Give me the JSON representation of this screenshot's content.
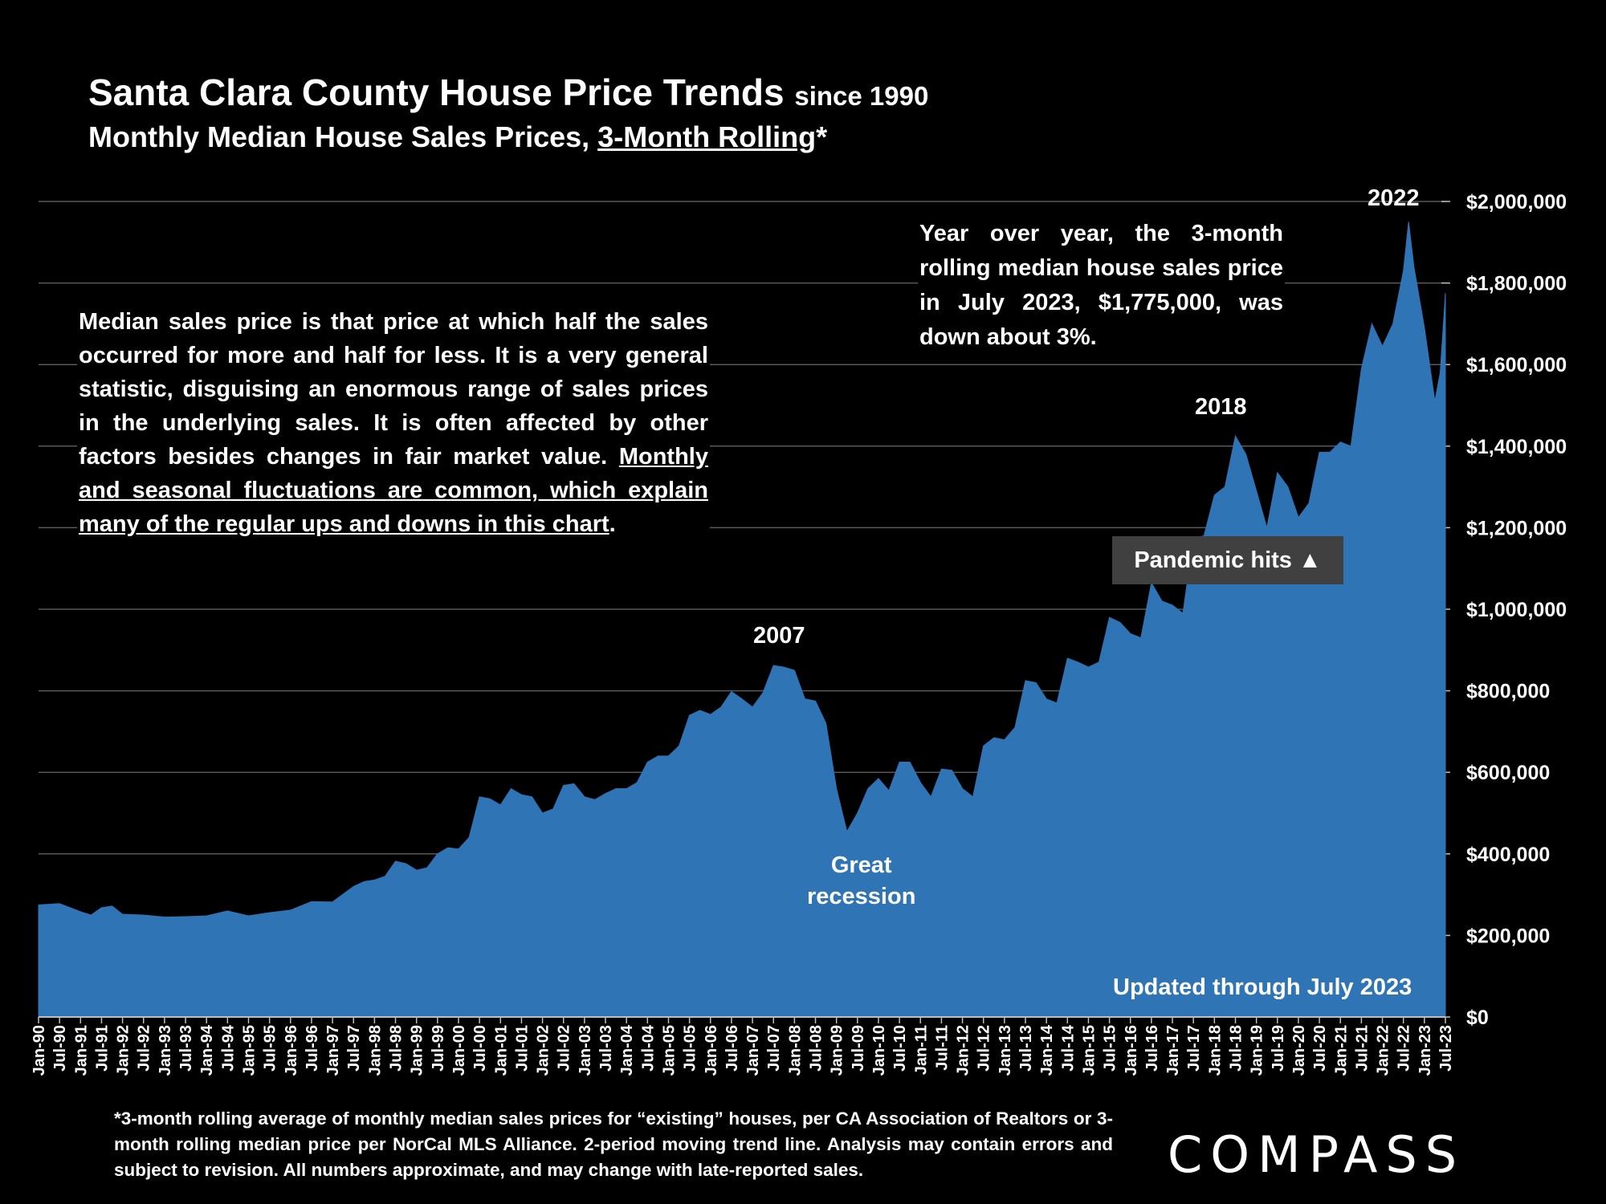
{
  "header": {
    "title": "Santa Clara County House Price Trends",
    "title_suffix": "since 1990",
    "subtitle_prefix": "Monthly Median House Sales Prices,",
    "subtitle_underlined": "3-Month Rolling",
    "subtitle_suffix": "*"
  },
  "notes": {
    "left_plain": "Median sales price is that price at which half the sales occurred for more and half for less. It is a very general statistic, disguising an enormous range of sales prices in the underlying sales. It is often affected by other factors besides changes in fair market value.",
    "left_underlined": "Monthly and seasonal fluctuations are common, which explain many of the regular ups and downs in this chart",
    "left_end": ".",
    "right": "Year over year, the 3-month rolling median house sales price in July 2023, $1,775,000, was down about 3%."
  },
  "annotations": {
    "y2007": "2007",
    "y2018": "2018",
    "y2022": "2022",
    "great_recession_1": "Great",
    "great_recession_2": "recession",
    "pandemic": "Pandemic hits ▲",
    "updated": "Updated through July 2023"
  },
  "footnote": "*3-month rolling average of monthly median sales prices for “existing” houses, per CA Association of Realtors or 3-month rolling median price per NorCal MLS Alliance. 2-period moving trend line. Analysis may contain errors and subject to revision. All numbers approximate, and may change with late-reported sales.",
  "logo": "COMPASS",
  "colors": {
    "background": "#000000",
    "area": "#2f74b5",
    "grid": "#595959",
    "text": "#ffffff",
    "pandemic_box": "#404040"
  },
  "chart_data": {
    "type": "area",
    "title": "Santa Clara County House Price Trends since 1990",
    "subtitle": "Monthly Median House Sales Prices, 3-Month Rolling*",
    "y_ticks": [
      "$0",
      "$200,000",
      "$400,000",
      "$600,000",
      "$800,000",
      "$1,000,000",
      "$1,200,000",
      "$1,400,000",
      "$1,600,000",
      "$1,800,000",
      "$2,000,000"
    ],
    "ylim": [
      0,
      2000000
    ],
    "y_axis_position": "right",
    "grid": true,
    "x_ticks": [
      "Jan-90",
      "Jul-90",
      "Jan-91",
      "Jul-91",
      "Jan-92",
      "Jul-92",
      "Jan-93",
      "Jul-93",
      "Jan-94",
      "Jul-94",
      "Jan-95",
      "Jul-95",
      "Jan-96",
      "Jul-96",
      "Jan-97",
      "Jul-97",
      "Jan-98",
      "Jul-98",
      "Jan-99",
      "Jul-99",
      "Jan-00",
      "Jul-00",
      "Jan-01",
      "Jul-01",
      "Jan-02",
      "Jul-02",
      "Jan-03",
      "Jul-03",
      "Jan-04",
      "Jul-04",
      "Jan-05",
      "Jul-05",
      "Jan-06",
      "Jul-06",
      "Jan-07",
      "Jul-07",
      "Jan-08",
      "Jul-08",
      "Jan-09",
      "Jul-09",
      "Jan-10",
      "Jul-10",
      "Jan-11",
      "Jul-11",
      "Jan-12",
      "Jul-12",
      "Jan-13",
      "Jul-13",
      "Jan-14",
      "Jul-14",
      "Jan-15",
      "Jul-15",
      "Jan-16",
      "Jul-16",
      "Jan-17",
      "Jul-17",
      "Jan-18",
      "Jul-18",
      "Jan-19",
      "Jul-19",
      "Jan-20",
      "Jul-20",
      "Jan-21",
      "Jul-21",
      "Jan-22",
      "Jul-22",
      "Jan-23",
      "Jul-23"
    ],
    "x_start": "Jan-90",
    "x_end": "Jul-23",
    "series": [
      {
        "values": [
          [
            1990.0,
            275000
          ],
          [
            1990.5,
            278000
          ],
          [
            1991.0,
            258000
          ],
          [
            1991.25,
            250000
          ],
          [
            1991.5,
            268000
          ],
          [
            1991.75,
            272000
          ],
          [
            1992.0,
            252000
          ],
          [
            1992.5,
            250000
          ],
          [
            1993.0,
            245000
          ],
          [
            1993.5,
            246000
          ],
          [
            1994.0,
            248000
          ],
          [
            1994.5,
            260000
          ],
          [
            1995.0,
            248000
          ],
          [
            1995.5,
            256000
          ],
          [
            1996.0,
            262000
          ],
          [
            1996.5,
            283000
          ],
          [
            1997.0,
            282000
          ],
          [
            1997.5,
            320000
          ],
          [
            1997.75,
            332000
          ],
          [
            1998.0,
            336000
          ],
          [
            1998.25,
            345000
          ],
          [
            1998.5,
            382000
          ],
          [
            1998.75,
            376000
          ],
          [
            1999.0,
            360000
          ],
          [
            1999.25,
            366000
          ],
          [
            1999.5,
            400000
          ],
          [
            1999.75,
            415000
          ],
          [
            2000.0,
            412000
          ],
          [
            2000.25,
            440000
          ],
          [
            2000.5,
            540000
          ],
          [
            2000.75,
            535000
          ],
          [
            2001.0,
            520000
          ],
          [
            2001.25,
            560000
          ],
          [
            2001.5,
            545000
          ],
          [
            2001.75,
            540000
          ],
          [
            2002.0,
            500000
          ],
          [
            2002.25,
            510000
          ],
          [
            2002.5,
            568000
          ],
          [
            2002.75,
            572000
          ],
          [
            2003.0,
            540000
          ],
          [
            2003.25,
            533000
          ],
          [
            2003.5,
            548000
          ],
          [
            2003.75,
            560000
          ],
          [
            2004.0,
            560000
          ],
          [
            2004.25,
            575000
          ],
          [
            2004.5,
            625000
          ],
          [
            2004.75,
            640000
          ],
          [
            2005.0,
            640000
          ],
          [
            2005.25,
            665000
          ],
          [
            2005.5,
            740000
          ],
          [
            2005.75,
            752000
          ],
          [
            2006.0,
            742000
          ],
          [
            2006.25,
            760000
          ],
          [
            2006.5,
            798000
          ],
          [
            2006.75,
            780000
          ],
          [
            2007.0,
            760000
          ],
          [
            2007.25,
            795000
          ],
          [
            2007.5,
            862000
          ],
          [
            2007.75,
            858000
          ],
          [
            2008.0,
            850000
          ],
          [
            2008.25,
            780000
          ],
          [
            2008.5,
            775000
          ],
          [
            2008.75,
            720000
          ],
          [
            2009.0,
            560000
          ],
          [
            2009.25,
            455000
          ],
          [
            2009.5,
            500000
          ],
          [
            2009.75,
            560000
          ],
          [
            2010.0,
            585000
          ],
          [
            2010.25,
            555000
          ],
          [
            2010.5,
            625000
          ],
          [
            2010.75,
            625000
          ],
          [
            2011.0,
            575000
          ],
          [
            2011.25,
            540000
          ],
          [
            2011.5,
            608000
          ],
          [
            2011.75,
            605000
          ],
          [
            2012.0,
            560000
          ],
          [
            2012.25,
            540000
          ],
          [
            2012.5,
            665000
          ],
          [
            2012.75,
            685000
          ],
          [
            2013.0,
            680000
          ],
          [
            2013.25,
            710000
          ],
          [
            2013.5,
            825000
          ],
          [
            2013.75,
            820000
          ],
          [
            2014.0,
            780000
          ],
          [
            2014.25,
            770000
          ],
          [
            2014.5,
            880000
          ],
          [
            2014.75,
            870000
          ],
          [
            2015.0,
            858000
          ],
          [
            2015.25,
            870000
          ],
          [
            2015.5,
            980000
          ],
          [
            2015.75,
            968000
          ],
          [
            2016.0,
            940000
          ],
          [
            2016.25,
            930000
          ],
          [
            2016.5,
            1065000
          ],
          [
            2016.75,
            1020000
          ],
          [
            2017.0,
            1010000
          ],
          [
            2017.25,
            990000
          ],
          [
            2017.5,
            1175000
          ],
          [
            2017.75,
            1180000
          ],
          [
            2018.0,
            1280000
          ],
          [
            2018.25,
            1300000
          ],
          [
            2018.5,
            1425000
          ],
          [
            2018.75,
            1380000
          ],
          [
            2019.0,
            1290000
          ],
          [
            2019.25,
            1200000
          ],
          [
            2019.5,
            1335000
          ],
          [
            2019.75,
            1300000
          ],
          [
            2020.0,
            1225000
          ],
          [
            2020.25,
            1260000
          ],
          [
            2020.5,
            1385000
          ],
          [
            2020.75,
            1385000
          ],
          [
            2021.0,
            1410000
          ],
          [
            2021.25,
            1400000
          ],
          [
            2021.5,
            1590000
          ],
          [
            2021.75,
            1700000
          ],
          [
            2022.0,
            1645000
          ],
          [
            2022.25,
            1700000
          ],
          [
            2022.5,
            1830000
          ],
          [
            2022.625,
            1950000
          ],
          [
            2022.75,
            1840000
          ],
          [
            2023.0,
            1690000
          ],
          [
            2023.25,
            1510000
          ],
          [
            2023.375,
            1580000
          ],
          [
            2023.5,
            1775000
          ]
        ]
      }
    ]
  }
}
